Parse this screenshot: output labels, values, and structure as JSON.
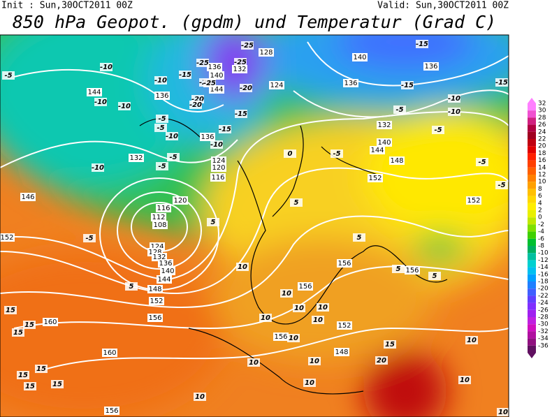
{
  "header": {
    "init": "Init : Sun,30OCT2011 00Z",
    "valid": "Valid: Sun,30OCT2011 00Z",
    "title": "850 hPa Geopot. (gpdm) und Temperatur (Grad C)"
  },
  "legend": {
    "labels": [
      32,
      30,
      28,
      26,
      24,
      22,
      20,
      18,
      16,
      14,
      12,
      10,
      8,
      6,
      4,
      2,
      0,
      -2,
      -4,
      -6,
      -8,
      -10,
      -12,
      -14,
      -16,
      -18,
      -20,
      -22,
      -24,
      -26,
      -28,
      -30,
      -32,
      -34,
      -36
    ],
    "colors": [
      "#ff80ff",
      "#f050d0",
      "#d02080",
      "#b00040",
      "#a00020",
      "#c00010",
      "#e00000",
      "#ff2000",
      "#ff4000",
      "#ff6000",
      "#ff8000",
      "#ffa000",
      "#ffc000",
      "#ffd800",
      "#ffee00",
      "#e8f000",
      "#c0e800",
      "#80e000",
      "#40d000",
      "#00c030",
      "#00b060",
      "#00c0a0",
      "#00d0d0",
      "#00c0f0",
      "#00a0ff",
      "#2080ff",
      "#4060ff",
      "#6040ff",
      "#8030ff",
      "#a020f0",
      "#c020e0",
      "#d010c0",
      "#b010a0",
      "#901080",
      "#601060"
    ]
  },
  "geopotential_labels": [
    "128",
    "140",
    "136",
    "136",
    "132",
    "140",
    "144",
    "124",
    "136",
    "144",
    "136",
    "132",
    "136",
    "124",
    "120",
    "116",
    "132",
    "140",
    "144",
    "148",
    "152",
    "146",
    "120",
    "116",
    "112",
    "108",
    "152",
    "124",
    "128",
    "132",
    "136",
    "140",
    "144",
    "148",
    "152",
    "156",
    "160",
    "160",
    "156",
    "156",
    "152",
    "156",
    "148",
    "152",
    "156",
    "156"
  ],
  "temperature_labels": [
    "-25",
    "-15",
    "-25",
    "-25",
    "-10",
    "-5",
    "-10",
    "-15",
    "-20",
    "-25",
    "-20",
    "-10",
    "-10",
    "-15",
    "-15",
    "-20",
    "-20",
    "-15",
    "-15",
    "-5",
    "-10",
    "-5",
    "-5",
    "-10",
    "-10",
    "-5",
    "-10",
    "-5",
    "-5",
    "-10",
    "-5",
    "-5",
    "-5",
    "5",
    "5",
    "-5",
    "0",
    "5",
    "10",
    "5",
    "5",
    "5",
    "10",
    "10",
    "10",
    "10",
    "10",
    "15",
    "15",
    "15",
    "15",
    "15",
    "15",
    "15",
    "10",
    "10",
    "10",
    "10",
    "10",
    "20",
    "15",
    "10",
    "10",
    "10"
  ]
}
